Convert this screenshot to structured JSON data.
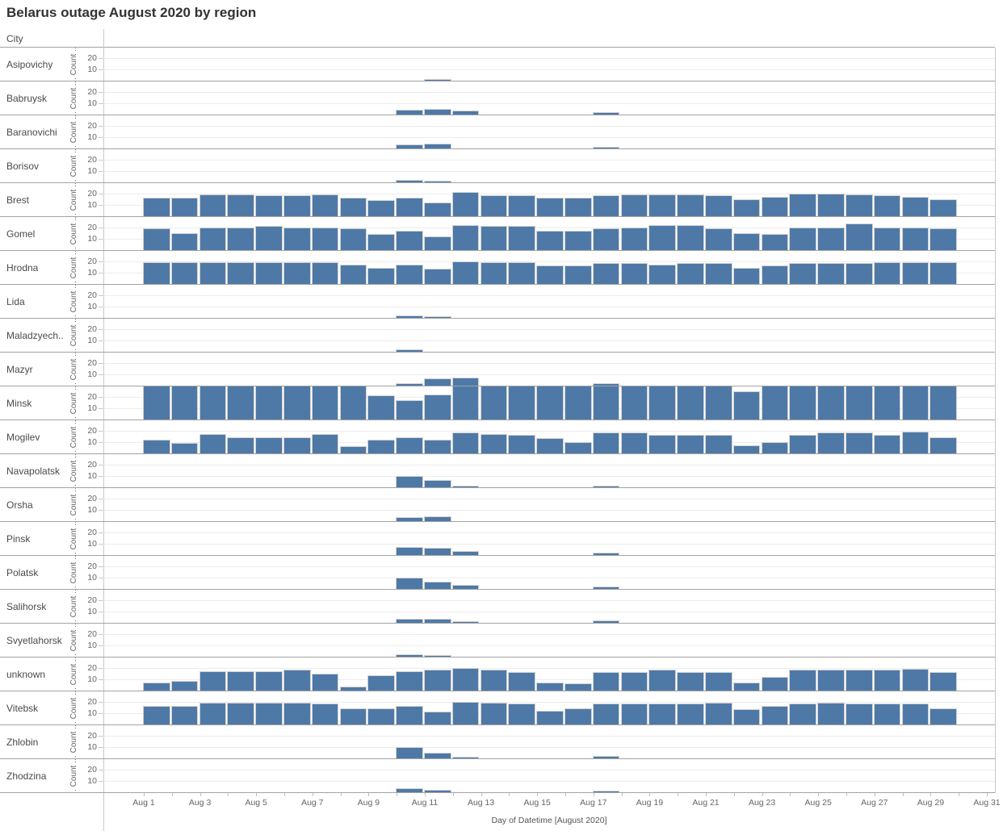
{
  "title": "Belarus outage August 2020 by region",
  "columns": {
    "city_header": "City"
  },
  "y_axis": {
    "label": "Count ..",
    "ticks": [
      "20",
      "10"
    ],
    "row_max": 30
  },
  "x_axis": {
    "title": "Day of Datetime [August 2020]",
    "tick_labels": [
      "Aug 1",
      "Aug 3",
      "Aug 5",
      "Aug 7",
      "Aug 9",
      "Aug 11",
      "Aug 13",
      "Aug 15",
      "Aug 17",
      "Aug 19",
      "Aug 21",
      "Aug 23",
      "Aug 25",
      "Aug 27",
      "Aug 29",
      "Aug 31"
    ],
    "first_day": 1,
    "last_day": 31
  },
  "colors": {
    "bar_fill": "#4e79a7",
    "bar_border": "#d3d3d3",
    "row_separator": "#a3a3a3",
    "grid_line": "#ececec",
    "axis_line": "#c9c9c9",
    "title_text": "#323232",
    "label_text": "#4a4a4a",
    "tick_text": "#666666"
  },
  "chart_data": {
    "type": "bar",
    "title": "Belarus outage August 2020 by region",
    "xlabel": "Day of Datetime [August 2020]",
    "ylabel": "Count ..",
    "x_unit": "day of August 2020",
    "x_range": [
      1,
      31
    ],
    "row_ylim": [
      0,
      30
    ],
    "grid": "horizontal, at 10 and 20 per row",
    "legend": "none",
    "series": [
      {
        "city": "Asipovichy",
        "values": {
          "11": 2
        }
      },
      {
        "city": "Babruysk",
        "values": {
          "10": 5,
          "11": 6,
          "12": 4,
          "17": 3
        }
      },
      {
        "city": "Baranovichi",
        "values": {
          "10": 4,
          "11": 5,
          "17": 2
        }
      },
      {
        "city": "Borisov",
        "values": {
          "10": 3,
          "11": 2
        }
      },
      {
        "city": "Brest",
        "values": {
          "1": 17,
          "2": 17,
          "3": 20,
          "4": 20,
          "5": 19,
          "6": 19,
          "7": 20,
          "8": 17,
          "9": 15,
          "10": 17,
          "11": 13,
          "12": 22,
          "13": 19,
          "14": 19,
          "15": 17,
          "16": 17,
          "17": 19,
          "18": 20,
          "19": 20,
          "20": 20,
          "21": 19,
          "22": 16,
          "23": 18,
          "24": 21,
          "25": 21,
          "26": 20,
          "27": 19,
          "28": 18,
          "29": 16
        }
      },
      {
        "city": "Gomel",
        "values": {
          "1": 20,
          "2": 16,
          "3": 21,
          "4": 21,
          "5": 22,
          "6": 21,
          "7": 21,
          "8": 20,
          "9": 15,
          "10": 18,
          "11": 13,
          "12": 23,
          "13": 22,
          "14": 22,
          "15": 18,
          "16": 18,
          "17": 20,
          "18": 21,
          "19": 23,
          "20": 23,
          "21": 20,
          "22": 16,
          "23": 15,
          "24": 21,
          "25": 21,
          "26": 24,
          "27": 21,
          "28": 21,
          "29": 20
        }
      },
      {
        "city": "Hrodna",
        "values": {
          "1": 20,
          "2": 20,
          "3": 20,
          "4": 20,
          "5": 20,
          "6": 20,
          "7": 20,
          "8": 18,
          "9": 15,
          "10": 18,
          "11": 14,
          "12": 21,
          "13": 20,
          "14": 20,
          "15": 17,
          "16": 17,
          "17": 19,
          "18": 19,
          "19": 18,
          "20": 19,
          "21": 19,
          "22": 15,
          "23": 17,
          "24": 19,
          "25": 19,
          "26": 19,
          "27": 20,
          "28": 20,
          "29": 20
        }
      },
      {
        "city": "Lida",
        "values": {
          "10": 3,
          "11": 2
        }
      },
      {
        "city": "Maladzyech..",
        "values": {
          "10": 3,
          "11": 1
        }
      },
      {
        "city": "Mazyr",
        "values": {
          "10": 3,
          "11": 7,
          "12": 8,
          "17": 3
        }
      },
      {
        "city": "Minsk",
        "values": {
          "1": 30,
          "2": 30,
          "3": 30,
          "4": 30,
          "5": 30,
          "6": 30,
          "7": 30,
          "8": 30,
          "9": 22,
          "10": 18,
          "11": 23,
          "12": 30,
          "13": 30,
          "14": 30,
          "15": 30,
          "16": 30,
          "17": 30,
          "18": 30,
          "19": 30,
          "20": 30,
          "21": 30,
          "22": 26,
          "23": 30,
          "24": 30,
          "25": 30,
          "26": 30,
          "27": 30,
          "28": 30,
          "29": 30
        }
      },
      {
        "city": "Mogilev",
        "values": {
          "1": 13,
          "2": 10,
          "3": 18,
          "4": 15,
          "5": 15,
          "6": 15,
          "7": 18,
          "8": 7,
          "9": 13,
          "10": 15,
          "11": 13,
          "12": 19,
          "13": 18,
          "14": 17,
          "15": 14,
          "16": 11,
          "17": 19,
          "18": 19,
          "19": 17,
          "20": 17,
          "21": 17,
          "22": 8,
          "23": 11,
          "24": 17,
          "25": 19,
          "26": 19,
          "27": 17,
          "28": 20,
          "29": 15
        }
      },
      {
        "city": "Navapolatsk",
        "values": {
          "10": 11,
          "11": 7,
          "12": 2,
          "17": 2
        }
      },
      {
        "city": "Orsha",
        "values": {
          "10": 4,
          "11": 5
        }
      },
      {
        "city": "Pinsk",
        "values": {
          "10": 8,
          "11": 7,
          "12": 4,
          "17": 3
        }
      },
      {
        "city": "Polatsk",
        "values": {
          "10": 11,
          "11": 7,
          "12": 4,
          "17": 3
        }
      },
      {
        "city": "Salihorsk",
        "values": {
          "10": 4,
          "11": 4,
          "12": 2,
          "17": 3
        }
      },
      {
        "city": "Svyetlahorsk",
        "values": {
          "10": 3,
          "11": 2
        }
      },
      {
        "city": "unknown",
        "values": {
          "1": 8,
          "2": 9,
          "3": 18,
          "4": 18,
          "5": 18,
          "6": 19,
          "7": 16,
          "8": 4,
          "9": 14,
          "10": 18,
          "11": 19,
          "12": 21,
          "13": 19,
          "14": 17,
          "15": 8,
          "16": 7,
          "17": 17,
          "18": 17,
          "19": 19,
          "20": 17,
          "21": 17,
          "22": 8,
          "23": 13,
          "24": 19,
          "25": 19,
          "26": 19,
          "27": 19,
          "28": 20,
          "29": 17
        }
      },
      {
        "city": "Vitebsk",
        "values": {
          "1": 17,
          "2": 17,
          "3": 20,
          "4": 20,
          "5": 20,
          "6": 20,
          "7": 19,
          "8": 15,
          "9": 15,
          "10": 17,
          "11": 12,
          "12": 21,
          "13": 20,
          "14": 19,
          "15": 13,
          "16": 15,
          "17": 19,
          "18": 19,
          "19": 19,
          "20": 19,
          "21": 20,
          "22": 14,
          "23": 17,
          "24": 19,
          "25": 20,
          "26": 19,
          "27": 19,
          "28": 19,
          "29": 15
        }
      },
      {
        "city": "Zhlobin",
        "values": {
          "10": 11,
          "11": 6,
          "12": 2,
          "17": 3
        }
      },
      {
        "city": "Zhodzina",
        "values": {
          "10": 4,
          "11": 3,
          "17": 2
        }
      }
    ]
  }
}
